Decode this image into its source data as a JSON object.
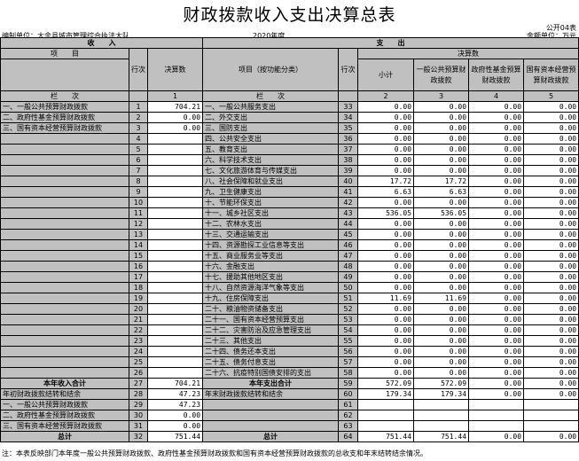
{
  "title": "财政拨款收入支出决算总表",
  "form_code": "公开04表",
  "unit": "编制单位：大余县城市管理综合执法大队",
  "year": "2020年度",
  "money_unit": "金额单位：万元",
  "header": {
    "income": "收　　入",
    "expense": "支　　出",
    "item": "项　　目",
    "row_no": "行次",
    "amount": "决算数",
    "item_func": "项目（按功能分类）",
    "final": "决算数",
    "subtotal": "小计",
    "c3": "一般公共预算财政拨款",
    "c4": "政府性基金预算财政拨款",
    "c5": "国有资本经营预算财政拨款",
    "col_label": "栏　　次",
    "n1": "1",
    "n2": "2",
    "n3": "3",
    "n4": "4",
    "n5": "5"
  },
  "rows": [
    {
      "l": "一、一般公共预算财政拨款",
      "ln": "1",
      "a": "704.21",
      "r": "一、一般公共服务支出",
      "rn": "33",
      "v": [
        "0.00",
        "0.00",
        "0.00",
        "0.00"
      ]
    },
    {
      "l": "二、政府性基金预算财政拨款",
      "ln": "2",
      "a": "0.00",
      "r": "二、外交支出",
      "rn": "34",
      "v": [
        "0.00",
        "0.00",
        "0.00",
        "0.00"
      ]
    },
    {
      "l": "三、国有资本经营预算财政拨款",
      "ln": "3",
      "a": "0.00",
      "r": "三、国防支出",
      "rn": "35",
      "v": [
        "0.00",
        "0.00",
        "0.00",
        "0.00"
      ]
    },
    {
      "l": "",
      "ln": "4",
      "a": "",
      "r": "四、公共安全支出",
      "rn": "36",
      "v": [
        "0.00",
        "0.00",
        "0.00",
        "0.00"
      ]
    },
    {
      "l": "",
      "ln": "5",
      "a": "",
      "r": "五、教育支出",
      "rn": "37",
      "v": [
        "0.00",
        "0.00",
        "0.00",
        "0.00"
      ]
    },
    {
      "l": "",
      "ln": "6",
      "a": "",
      "r": "六、科学技术支出",
      "rn": "38",
      "v": [
        "0.00",
        "0.00",
        "0.00",
        "0.00"
      ]
    },
    {
      "l": "",
      "ln": "7",
      "a": "",
      "r": "七、文化旅游体育与传媒支出",
      "rn": "39",
      "v": [
        "0.00",
        "0.00",
        "0.00",
        "0.00"
      ]
    },
    {
      "l": "",
      "ln": "8",
      "a": "",
      "r": "八、社会保障和就业支出",
      "rn": "40",
      "v": [
        "17.72",
        "17.72",
        "0.00",
        "0.00"
      ]
    },
    {
      "l": "",
      "ln": "9",
      "a": "",
      "r": "九、卫生健康支出",
      "rn": "41",
      "v": [
        "6.63",
        "6.63",
        "0.00",
        "0.00"
      ]
    },
    {
      "l": "",
      "ln": "10",
      "a": "",
      "r": "十、节能环保支出",
      "rn": "42",
      "v": [
        "0.00",
        "0.00",
        "0.00",
        "0.00"
      ]
    },
    {
      "l": "",
      "ln": "11",
      "a": "",
      "r": "十一、城乡社区支出",
      "rn": "43",
      "v": [
        "536.05",
        "536.05",
        "0.00",
        "0.00"
      ]
    },
    {
      "l": "",
      "ln": "12",
      "a": "",
      "r": "十二、农林水支出",
      "rn": "44",
      "v": [
        "0.00",
        "0.00",
        "0.00",
        "0.00"
      ]
    },
    {
      "l": "",
      "ln": "13",
      "a": "",
      "r": "十三、交通运输支出",
      "rn": "45",
      "v": [
        "0.00",
        "0.00",
        "0.00",
        "0.00"
      ]
    },
    {
      "l": "",
      "ln": "14",
      "a": "",
      "r": "十四、资源勘探工业信息等支出",
      "rn": "46",
      "v": [
        "0.00",
        "0.00",
        "0.00",
        "0.00"
      ]
    },
    {
      "l": "",
      "ln": "15",
      "a": "",
      "r": "十五、商业服务业等支出",
      "rn": "47",
      "v": [
        "0.00",
        "0.00",
        "0.00",
        "0.00"
      ]
    },
    {
      "l": "",
      "ln": "16",
      "a": "",
      "r": "十六、金融支出",
      "rn": "48",
      "v": [
        "0.00",
        "0.00",
        "0.00",
        "0.00"
      ]
    },
    {
      "l": "",
      "ln": "17",
      "a": "",
      "r": "十七、援助其他地区支出",
      "rn": "49",
      "v": [
        "0.00",
        "0.00",
        "0.00",
        "0.00"
      ]
    },
    {
      "l": "",
      "ln": "18",
      "a": "",
      "r": "十八、自然资源海洋气象等支出",
      "rn": "50",
      "v": [
        "0.00",
        "0.00",
        "0.00",
        "0.00"
      ]
    },
    {
      "l": "",
      "ln": "19",
      "a": "",
      "r": "十九、住房保障支出",
      "rn": "51",
      "v": [
        "11.69",
        "11.69",
        "0.00",
        "0.00"
      ]
    },
    {
      "l": "",
      "ln": "20",
      "a": "",
      "r": "二十、粮油物资储备支出",
      "rn": "52",
      "v": [
        "0.00",
        "0.00",
        "0.00",
        "0.00"
      ]
    },
    {
      "l": "",
      "ln": "21",
      "a": "",
      "r": "二十一、国有资本经营预算支出",
      "rn": "53",
      "v": [
        "0.00",
        "0.00",
        "0.00",
        "0.00"
      ]
    },
    {
      "l": "",
      "ln": "22",
      "a": "",
      "r": "二十二、灾害防治及应急管理支出",
      "rn": "54",
      "v": [
        "0.00",
        "0.00",
        "0.00",
        "0.00"
      ]
    },
    {
      "l": "",
      "ln": "23",
      "a": "",
      "r": "二十三、其他支出",
      "rn": "55",
      "v": [
        "0.00",
        "0.00",
        "0.00",
        "0.00"
      ]
    },
    {
      "l": "",
      "ln": "24",
      "a": "",
      "r": "二十四、债务还本支出",
      "rn": "56",
      "v": [
        "0.00",
        "0.00",
        "0.00",
        "0.00"
      ]
    },
    {
      "l": "",
      "ln": "25",
      "a": "",
      "r": "二十五、债务付息支出",
      "rn": "57",
      "v": [
        "0.00",
        "0.00",
        "0.00",
        "0.00"
      ]
    },
    {
      "l": "",
      "ln": "26",
      "a": "",
      "r": "二十六、抗疫特别国债安排的支出",
      "rn": "58",
      "v": [
        "0.00",
        "0.00",
        "0.00",
        "0.00"
      ]
    },
    {
      "l": "本年收入合计",
      "ln": "27",
      "a": "704.21",
      "r": "本年支出合计",
      "rn": "59",
      "v": [
        "572.09",
        "572.09",
        "0.00",
        "0.00"
      ],
      "bold": true
    },
    {
      "l": "年初财政拨款结转和结余",
      "ln": "28",
      "a": "47.23",
      "r": "年末财政拨款结转和结余",
      "rn": "60",
      "v": [
        "179.34",
        "179.34",
        "0.00",
        "0.00"
      ]
    },
    {
      "l": "一、一般公共预算财政拨款",
      "ln": "29",
      "a": "47.23",
      "r": "",
      "rn": "61",
      "v": [
        "",
        "",
        "",
        ""
      ]
    },
    {
      "l": "二、政府性基金预算财政拨款",
      "ln": "30",
      "a": "0.00",
      "r": "",
      "rn": "62",
      "v": [
        "",
        "",
        "",
        ""
      ]
    },
    {
      "l": "三、国有资本经营预算财政拨款",
      "ln": "31",
      "a": "0.00",
      "r": "",
      "rn": "63",
      "v": [
        "",
        "",
        "",
        ""
      ]
    },
    {
      "l": "总计",
      "ln": "32",
      "a": "751.44",
      "r": "总计",
      "rn": "64",
      "v": [
        "751.44",
        "751.44",
        "0.00",
        "0.00"
      ],
      "bold": true
    }
  ],
  "note": "注：本表反映部门本年度一般公共预算财政拨款、政府性基金预算财政拨款和国有资本经营预算财政拨款的总收支和年末结转结余情况。"
}
